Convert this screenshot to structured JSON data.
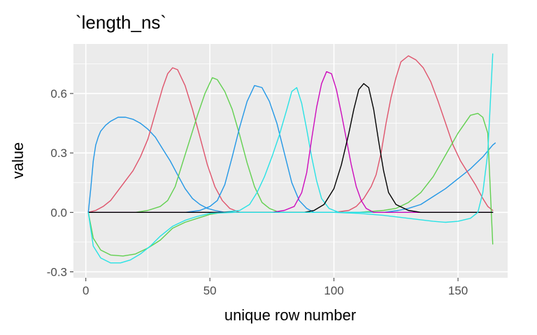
{
  "chart_data": {
    "type": "line",
    "title": "`length_ns`",
    "xlabel": "unique row number",
    "ylabel": "value",
    "xlim": [
      -5,
      170
    ],
    "ylim": [
      -0.33,
      0.85
    ],
    "x_ticks": [
      0,
      50,
      100,
      150
    ],
    "x_tick_labels": [
      "0",
      "50",
      "100",
      "150"
    ],
    "y_ticks": [
      -0.3,
      0.0,
      0.3,
      0.6
    ],
    "y_tick_labels": [
      "-0.3",
      "0.0",
      "0.3",
      "0.6"
    ],
    "x_minor_ticks": [
      25,
      75,
      125
    ],
    "y_minor_ticks": [
      -0.15,
      0.15,
      0.45,
      0.75
    ],
    "grid": true,
    "legend": "none",
    "panel_background": "#ebebeb",
    "series": [
      {
        "color": "#2297e6",
        "points": [
          [
            1,
            0
          ],
          [
            2,
            0.12
          ],
          [
            3,
            0.26
          ],
          [
            4,
            0.34
          ],
          [
            5,
            0.38
          ],
          [
            6,
            0.41
          ],
          [
            8,
            0.44
          ],
          [
            10,
            0.46
          ],
          [
            13,
            0.48
          ],
          [
            16,
            0.48
          ],
          [
            19,
            0.47
          ],
          [
            22,
            0.45
          ],
          [
            25,
            0.42
          ],
          [
            28,
            0.38
          ],
          [
            31,
            0.32
          ],
          [
            34,
            0.26
          ],
          [
            37,
            0.19
          ],
          [
            40,
            0.12
          ],
          [
            43,
            0.07
          ],
          [
            46,
            0.04
          ],
          [
            49,
            0.02
          ],
          [
            52,
            0.01
          ],
          [
            56,
            0
          ],
          [
            70,
            0
          ],
          [
            100,
            0
          ],
          [
            120,
            0
          ],
          [
            126,
            0.01
          ],
          [
            130,
            0.02
          ],
          [
            135,
            0.04
          ],
          [
            140,
            0.08
          ],
          [
            145,
            0.12
          ],
          [
            150,
            0.17
          ],
          [
            155,
            0.22
          ],
          [
            160,
            0.28
          ],
          [
            164,
            0.34
          ],
          [
            165,
            0.35
          ]
        ]
      },
      {
        "color": "#df536b",
        "points": [
          [
            1,
            0
          ],
          [
            4,
            0.01
          ],
          [
            7,
            0.03
          ],
          [
            10,
            0.06
          ],
          [
            13,
            0.11
          ],
          [
            16,
            0.16
          ],
          [
            19,
            0.21
          ],
          [
            22,
            0.28
          ],
          [
            25,
            0.37
          ],
          [
            28,
            0.5
          ],
          [
            31,
            0.63
          ],
          [
            33,
            0.7
          ],
          [
            35,
            0.73
          ],
          [
            37,
            0.72
          ],
          [
            40,
            0.64
          ],
          [
            43,
            0.52
          ],
          [
            46,
            0.38
          ],
          [
            49,
            0.24
          ],
          [
            52,
            0.13
          ],
          [
            55,
            0.06
          ],
          [
            58,
            0.02
          ],
          [
            62,
            0
          ],
          [
            100,
            0
          ],
          [
            106,
            0.01
          ],
          [
            109,
            0.03
          ],
          [
            112,
            0.07
          ],
          [
            115,
            0.13
          ],
          [
            117,
            0.19
          ],
          [
            119,
            0.3
          ],
          [
            121,
            0.45
          ],
          [
            123,
            0.58
          ],
          [
            125,
            0.68
          ],
          [
            127,
            0.76
          ],
          [
            130,
            0.79
          ],
          [
            133,
            0.77
          ],
          [
            136,
            0.73
          ],
          [
            139,
            0.66
          ],
          [
            142,
            0.56
          ],
          [
            145,
            0.45
          ],
          [
            148,
            0.34
          ],
          [
            151,
            0.26
          ],
          [
            154,
            0.2
          ],
          [
            157,
            0.14
          ],
          [
            160,
            0.07
          ],
          [
            162,
            0.03
          ],
          [
            164,
            0.01
          ]
        ]
      },
      {
        "color": "#61d04f",
        "points": [
          [
            1,
            0
          ],
          [
            3,
            -0.13
          ],
          [
            6,
            -0.19
          ],
          [
            10,
            -0.215
          ],
          [
            15,
            -0.22
          ],
          [
            20,
            -0.21
          ],
          [
            25,
            -0.18
          ],
          [
            30,
            -0.14
          ],
          [
            35,
            -0.08
          ],
          [
            40,
            -0.05
          ],
          [
            45,
            -0.03
          ],
          [
            50,
            -0.01
          ],
          [
            55,
            0
          ],
          [
            110,
            0
          ],
          [
            120,
            0.01
          ],
          [
            125,
            0.02
          ],
          [
            130,
            0.05
          ],
          [
            135,
            0.1
          ],
          [
            140,
            0.18
          ],
          [
            145,
            0.29
          ],
          [
            150,
            0.4
          ],
          [
            155,
            0.49
          ],
          [
            158,
            0.5
          ],
          [
            160,
            0.48
          ],
          [
            162,
            0.4
          ],
          [
            164,
            -0.16
          ]
        ]
      },
      {
        "color": "#61d04f",
        "points": [
          [
            1,
            0
          ],
          [
            15,
            0
          ],
          [
            20,
            0
          ],
          [
            25,
            0.01
          ],
          [
            30,
            0.03
          ],
          [
            33,
            0.06
          ],
          [
            36,
            0.13
          ],
          [
            39,
            0.25
          ],
          [
            42,
            0.37
          ],
          [
            45,
            0.49
          ],
          [
            48,
            0.6
          ],
          [
            51,
            0.68
          ],
          [
            53,
            0.67
          ],
          [
            56,
            0.61
          ],
          [
            59,
            0.52
          ],
          [
            62,
            0.39
          ],
          [
            65,
            0.25
          ],
          [
            68,
            0.13
          ],
          [
            71,
            0.05
          ],
          [
            74,
            0.02
          ],
          [
            78,
            0
          ],
          [
            164,
            0
          ]
        ]
      },
      {
        "color": "#2297e6",
        "points": [
          [
            1,
            0
          ],
          [
            40,
            0
          ],
          [
            46,
            0.01
          ],
          [
            50,
            0.03
          ],
          [
            53,
            0.06
          ],
          [
            56,
            0.14
          ],
          [
            59,
            0.28
          ],
          [
            62,
            0.43
          ],
          [
            65,
            0.56
          ],
          [
            68,
            0.64
          ],
          [
            71,
            0.63
          ],
          [
            74,
            0.56
          ],
          [
            77,
            0.45
          ],
          [
            80,
            0.3
          ],
          [
            83,
            0.15
          ],
          [
            86,
            0.06
          ],
          [
            89,
            0.02
          ],
          [
            92,
            0
          ],
          [
            164,
            0
          ]
        ]
      },
      {
        "color": "#28e2e5",
        "points": [
          [
            1,
            0
          ],
          [
            55,
            0
          ],
          [
            62,
            0.01
          ],
          [
            66,
            0.04
          ],
          [
            69,
            0.1
          ],
          [
            72,
            0.18
          ],
          [
            75,
            0.28
          ],
          [
            78,
            0.39
          ],
          [
            81,
            0.52
          ],
          [
            83,
            0.61
          ],
          [
            85,
            0.63
          ],
          [
            87,
            0.55
          ],
          [
            89,
            0.42
          ],
          [
            91,
            0.28
          ],
          [
            93,
            0.16
          ],
          [
            95,
            0.07
          ],
          [
            98,
            0.02
          ],
          [
            102,
            0
          ],
          [
            164,
            0
          ]
        ]
      },
      {
        "color": "#cd0bbc",
        "points": [
          [
            1,
            0
          ],
          [
            75,
            0
          ],
          [
            80,
            0.01
          ],
          [
            84,
            0.03
          ],
          [
            87,
            0.1
          ],
          [
            89,
            0.2
          ],
          [
            91,
            0.37
          ],
          [
            93,
            0.53
          ],
          [
            95,
            0.65
          ],
          [
            97,
            0.71
          ],
          [
            99,
            0.7
          ],
          [
            101,
            0.62
          ],
          [
            103,
            0.5
          ],
          [
            105,
            0.37
          ],
          [
            107,
            0.24
          ],
          [
            109,
            0.13
          ],
          [
            111,
            0.06
          ],
          [
            113,
            0.02
          ],
          [
            116,
            0
          ],
          [
            164,
            0
          ]
        ]
      },
      {
        "color": "#000000",
        "points": [
          [
            1,
            0
          ],
          [
            88,
            0
          ],
          [
            92,
            0.01
          ],
          [
            96,
            0.04
          ],
          [
            100,
            0.12
          ],
          [
            103,
            0.24
          ],
          [
            106,
            0.4
          ],
          [
            108,
            0.52
          ],
          [
            110,
            0.62
          ],
          [
            112,
            0.65
          ],
          [
            114,
            0.63
          ],
          [
            116,
            0.52
          ],
          [
            118,
            0.36
          ],
          [
            120,
            0.21
          ],
          [
            122,
            0.1
          ],
          [
            125,
            0.04
          ],
          [
            130,
            0.01
          ],
          [
            135,
            0
          ],
          [
            164,
            0
          ]
        ]
      },
      {
        "color": "#28e2e5",
        "points": [
          [
            1,
            0
          ],
          [
            3,
            -0.17
          ],
          [
            6,
            -0.23
          ],
          [
            10,
            -0.255
          ],
          [
            14,
            -0.255
          ],
          [
            18,
            -0.24
          ],
          [
            22,
            -0.21
          ],
          [
            26,
            -0.17
          ],
          [
            30,
            -0.12
          ],
          [
            35,
            -0.07
          ],
          [
            40,
            -0.04
          ],
          [
            45,
            -0.02
          ],
          [
            50,
            -0.005
          ],
          [
            60,
            0
          ],
          [
            100,
            0
          ],
          [
            110,
            -0.005
          ],
          [
            120,
            -0.015
          ],
          [
            130,
            -0.03
          ],
          [
            140,
            -0.045
          ],
          [
            145,
            -0.05
          ],
          [
            150,
            -0.045
          ],
          [
            155,
            -0.03
          ],
          [
            158,
            0
          ],
          [
            160,
            0.1
          ],
          [
            162,
            0.3
          ],
          [
            163,
            0.55
          ],
          [
            164,
            0.8
          ]
        ]
      }
    ]
  }
}
